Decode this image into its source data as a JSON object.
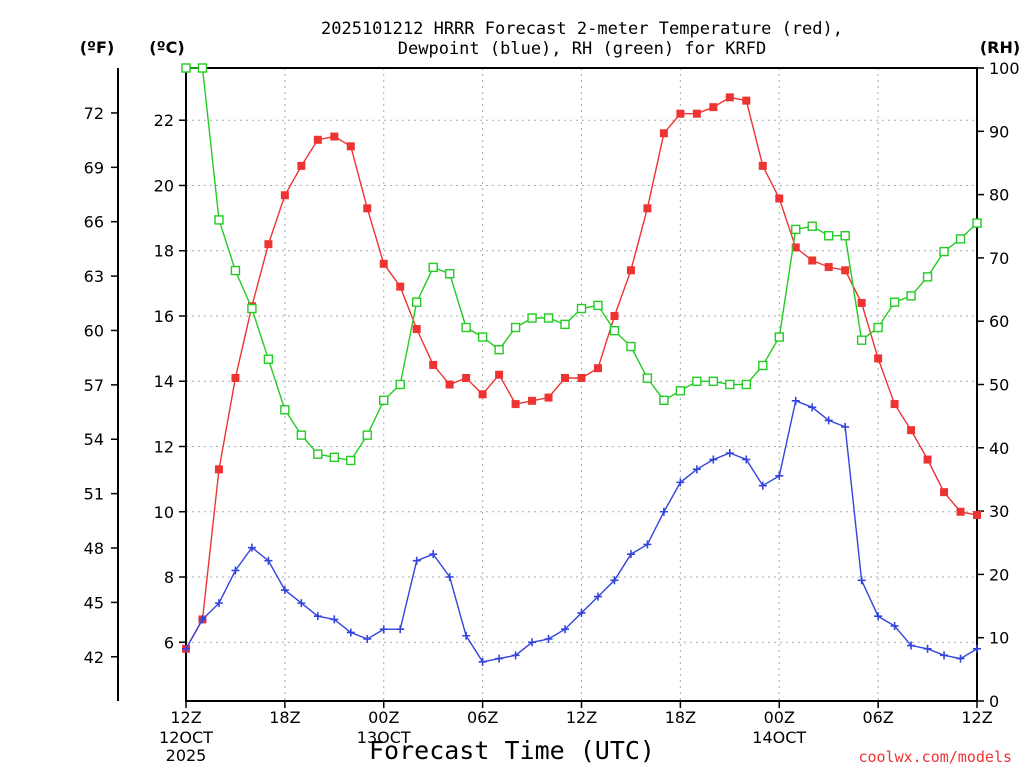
{
  "chart_data": {
    "type": "line",
    "title_line1": "2025101212 HRRR Forecast 2-meter Temperature (red),",
    "title_line2": "Dewpoint (blue), RH (green) for KRFD",
    "xlabel": "Forecast Time (UTC)",
    "credit": "coolwx.com/models",
    "colors": {
      "temperature": "#ee3333",
      "dewpoint": "#3344dd",
      "rh": "#22cc22",
      "grid": "#aaaaaa"
    },
    "units": {
      "fahrenheit": "(ºF)",
      "celsius": "(ºC)",
      "rh": "(RH)"
    },
    "x_range_hours": [
      0,
      48
    ],
    "celsius_range": [
      4.2,
      23.6
    ],
    "rh_range": [
      0,
      100
    ],
    "celsius_ticks": [
      "6",
      "8",
      "10",
      "12",
      "14",
      "16",
      "18",
      "20",
      "22"
    ],
    "fahrenheit_ticks": [
      "42",
      "45",
      "48",
      "51",
      "54",
      "57",
      "60",
      "63",
      "66",
      "69",
      "72"
    ],
    "rh_ticks": [
      "0",
      "10",
      "20",
      "30",
      "40",
      "50",
      "60",
      "70",
      "80",
      "90",
      "100"
    ],
    "x_ticks": [
      {
        "hour": 0,
        "label": "12Z",
        "sub1": "12OCT",
        "sub2": "2025"
      },
      {
        "hour": 6,
        "label": "18Z",
        "sub1": "",
        "sub2": ""
      },
      {
        "hour": 12,
        "label": "00Z",
        "sub1": "13OCT",
        "sub2": ""
      },
      {
        "hour": 18,
        "label": "06Z",
        "sub1": "",
        "sub2": ""
      },
      {
        "hour": 24,
        "label": "12Z",
        "sub1": "",
        "sub2": ""
      },
      {
        "hour": 30,
        "label": "18Z",
        "sub1": "",
        "sub2": ""
      },
      {
        "hour": 36,
        "label": "00Z",
        "sub1": "14OCT",
        "sub2": ""
      },
      {
        "hour": 42,
        "label": "06Z",
        "sub1": "",
        "sub2": ""
      },
      {
        "hour": 48,
        "label": "12Z",
        "sub1": "",
        "sub2": ""
      }
    ],
    "series": [
      {
        "name": "Temperature (°C)",
        "key": "temperature",
        "axis": "celsius",
        "marker": "filled-square",
        "values": [
          5.8,
          6.7,
          11.3,
          14.1,
          16.3,
          18.2,
          19.7,
          20.6,
          21.4,
          21.5,
          21.2,
          19.3,
          17.6,
          16.9,
          15.6,
          14.5,
          13.9,
          14.1,
          13.6,
          14.2,
          13.3,
          13.4,
          13.5,
          14.1,
          14.1,
          14.4,
          16.0,
          17.4,
          19.3,
          21.6,
          22.2,
          22.2,
          22.4,
          22.7,
          22.6,
          20.6,
          19.6,
          18.1,
          17.7,
          17.5,
          17.4,
          16.4,
          14.7,
          13.3,
          12.5,
          11.6,
          10.6,
          10.0,
          9.9
        ]
      },
      {
        "name": "Dewpoint (°C)",
        "key": "dewpoint",
        "axis": "celsius",
        "marker": "plus",
        "values": [
          5.8,
          6.7,
          7.2,
          8.2,
          8.9,
          8.5,
          7.6,
          7.2,
          6.8,
          6.7,
          6.3,
          6.1,
          6.4,
          6.4,
          8.5,
          8.7,
          8.0,
          6.2,
          5.4,
          5.5,
          5.6,
          6.0,
          6.1,
          6.4,
          6.9,
          7.4,
          7.9,
          8.7,
          9.0,
          10.0,
          10.9,
          11.3,
          11.6,
          11.8,
          11.6,
          10.8,
          11.1,
          13.4,
          13.2,
          12.8,
          12.6,
          7.9,
          6.8,
          6.5,
          5.9,
          5.8,
          5.6,
          5.5,
          5.8
        ]
      },
      {
        "name": "RH (%)",
        "key": "rh",
        "axis": "rh",
        "marker": "open-square",
        "values": [
          100,
          100,
          76,
          68,
          62,
          54,
          46,
          42,
          39,
          38.5,
          38,
          42,
          47.5,
          50,
          63,
          68.5,
          67.5,
          59,
          57.5,
          55.5,
          59,
          60.5,
          60.5,
          59.5,
          62,
          62.5,
          58.5,
          56,
          51,
          47.5,
          49,
          50.5,
          50.5,
          50,
          50,
          53,
          57.5,
          74.5,
          75,
          73.5,
          73.5,
          57,
          59,
          63,
          64,
          67,
          71,
          73,
          75.5
        ]
      }
    ]
  }
}
